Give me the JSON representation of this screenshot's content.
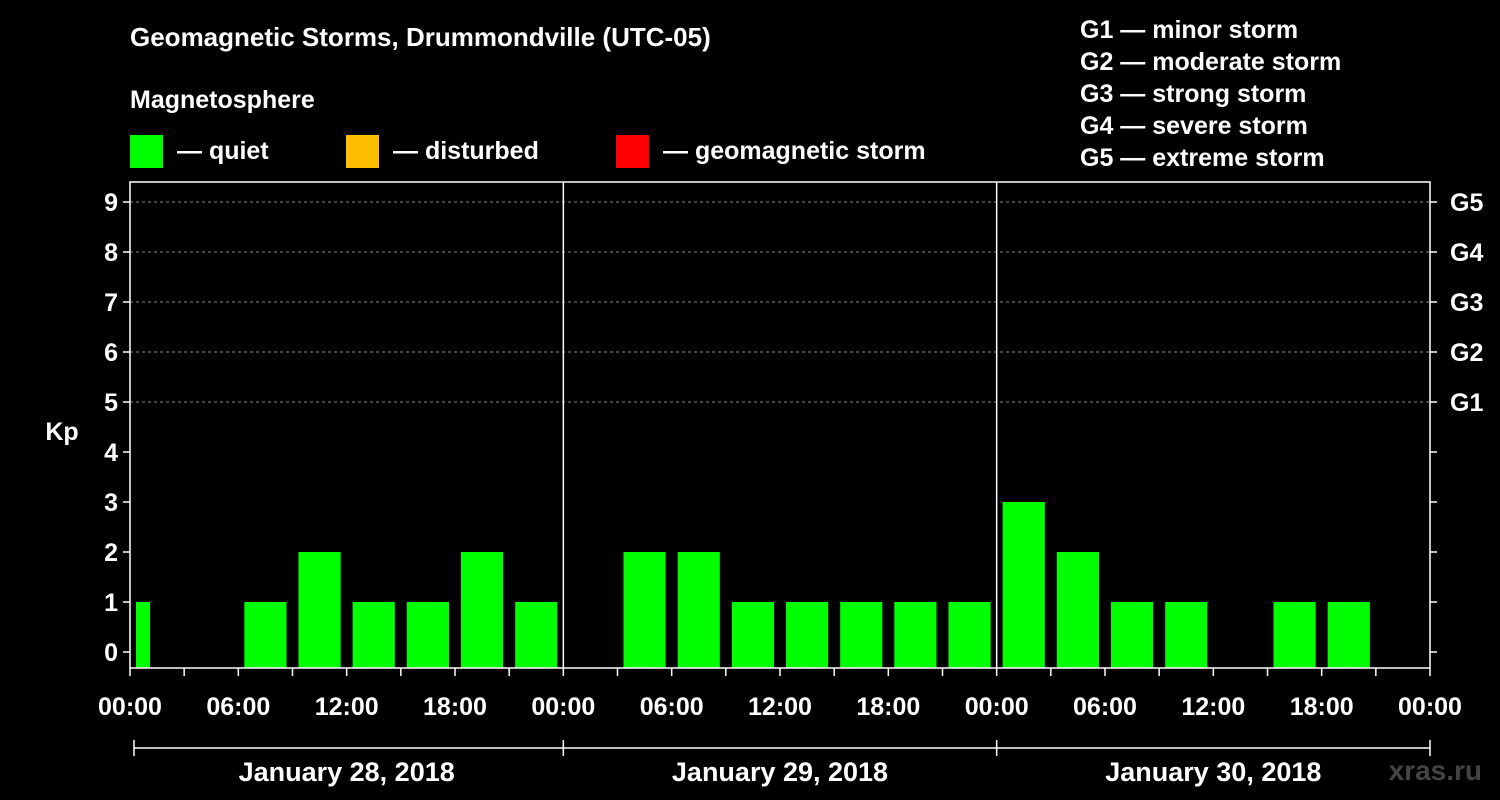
{
  "title": "Geomagnetic Storms, Drummondville (UTC-05)",
  "magnetosphere_label": "Magnetosphere",
  "legend": [
    {
      "label": "— quiet",
      "color": "#00ff00"
    },
    {
      "label": "— disturbed",
      "color": "#ffbf00"
    },
    {
      "label": "— geomagnetic storm",
      "color": "#ff0000"
    }
  ],
  "g_levels": [
    "G1 — minor storm",
    "G2 — moderate storm",
    "G3 — strong storm",
    "G4 — severe storm",
    "G5 — extreme storm"
  ],
  "watermark": "xras.ru",
  "chart_data": {
    "type": "bar",
    "title": "Geomagnetic Storms, Drummondville (UTC-05)",
    "ylabel": "Kp",
    "ylim": [
      0,
      9
    ],
    "yticks": [
      "0",
      "1",
      "2",
      "3",
      "4",
      "5",
      "6",
      "7",
      "8",
      "9"
    ],
    "right_axis": [
      {
        "kp": 5,
        "label": "G1"
      },
      {
        "kp": 6,
        "label": "G2"
      },
      {
        "kp": 7,
        "label": "G3"
      },
      {
        "kp": 8,
        "label": "G4"
      },
      {
        "kp": 9,
        "label": "G5"
      }
    ],
    "x_tick_labels": [
      "00:00",
      "06:00",
      "12:00",
      "18:00",
      "00:00",
      "06:00",
      "12:00",
      "18:00",
      "00:00",
      "06:00",
      "12:00",
      "18:00",
      "00:00"
    ],
    "days": [
      "January 28, 2018",
      "January 29, 2018",
      "January 30, 2018"
    ],
    "interval_hours": 3,
    "bar_color": "#00ff00",
    "grid": "dashed at Kp 5–9",
    "bars": [
      {
        "start_hour": 0,
        "end_hour": 1,
        "kp": 1
      },
      {
        "start_hour": 6,
        "end_hour": 9,
        "kp": 1
      },
      {
        "start_hour": 9,
        "end_hour": 12,
        "kp": 2
      },
      {
        "start_hour": 12,
        "end_hour": 15,
        "kp": 1
      },
      {
        "start_hour": 15,
        "end_hour": 18,
        "kp": 1
      },
      {
        "start_hour": 18,
        "end_hour": 21,
        "kp": 2
      },
      {
        "start_hour": 21,
        "end_hour": 24,
        "kp": 1
      },
      {
        "start_hour": 27,
        "end_hour": 30,
        "kp": 2
      },
      {
        "start_hour": 30,
        "end_hour": 33,
        "kp": 2
      },
      {
        "start_hour": 33,
        "end_hour": 36,
        "kp": 1
      },
      {
        "start_hour": 36,
        "end_hour": 39,
        "kp": 1
      },
      {
        "start_hour": 39,
        "end_hour": 42,
        "kp": 1
      },
      {
        "start_hour": 42,
        "end_hour": 45,
        "kp": 1
      },
      {
        "start_hour": 45,
        "end_hour": 48,
        "kp": 1
      },
      {
        "start_hour": 48,
        "end_hour": 51,
        "kp": 3
      },
      {
        "start_hour": 51,
        "end_hour": 54,
        "kp": 2
      },
      {
        "start_hour": 54,
        "end_hour": 57,
        "kp": 1
      },
      {
        "start_hour": 57,
        "end_hour": 60,
        "kp": 1
      },
      {
        "start_hour": 63,
        "end_hour": 66,
        "kp": 1
      },
      {
        "start_hour": 66,
        "end_hour": 69,
        "kp": 1
      }
    ]
  }
}
